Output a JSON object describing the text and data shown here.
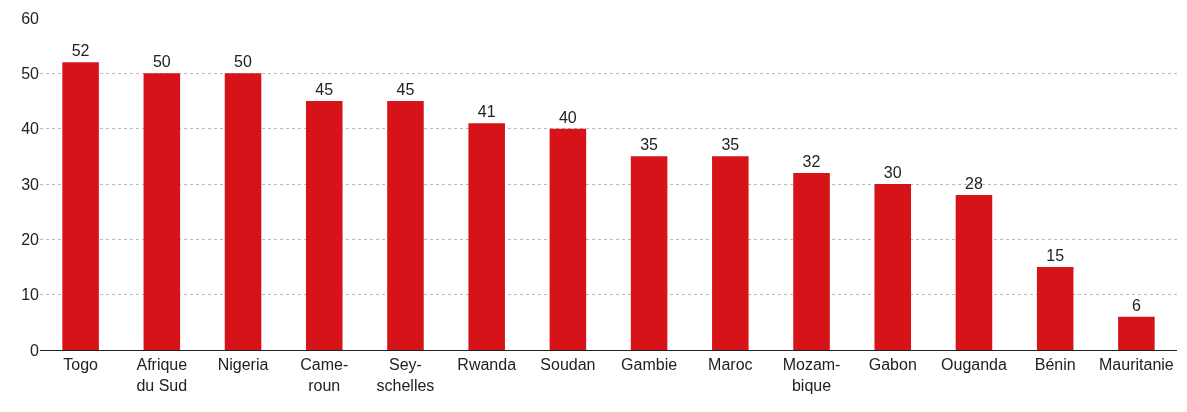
{
  "chart_data": {
    "type": "bar",
    "categories": [
      "Togo",
      "Afrique\ndu Sud",
      "Nigeria",
      "Came-\nroun",
      "Sey-\nschelles",
      "Rwanda",
      "Soudan",
      "Gambie",
      "Maroc",
      "Mozam-\nbique",
      "Gabon",
      "Ouganda",
      "Bénin",
      "Mauritanie"
    ],
    "values": [
      52,
      50,
      50,
      45,
      45,
      41,
      40,
      35,
      35,
      32,
      30,
      28,
      15,
      6
    ],
    "color": "#d7131a",
    "ylim": [
      0,
      60
    ],
    "yticks": [
      0,
      10,
      20,
      30,
      40,
      50,
      60
    ],
    "grid": "y",
    "data_labels": true
  }
}
